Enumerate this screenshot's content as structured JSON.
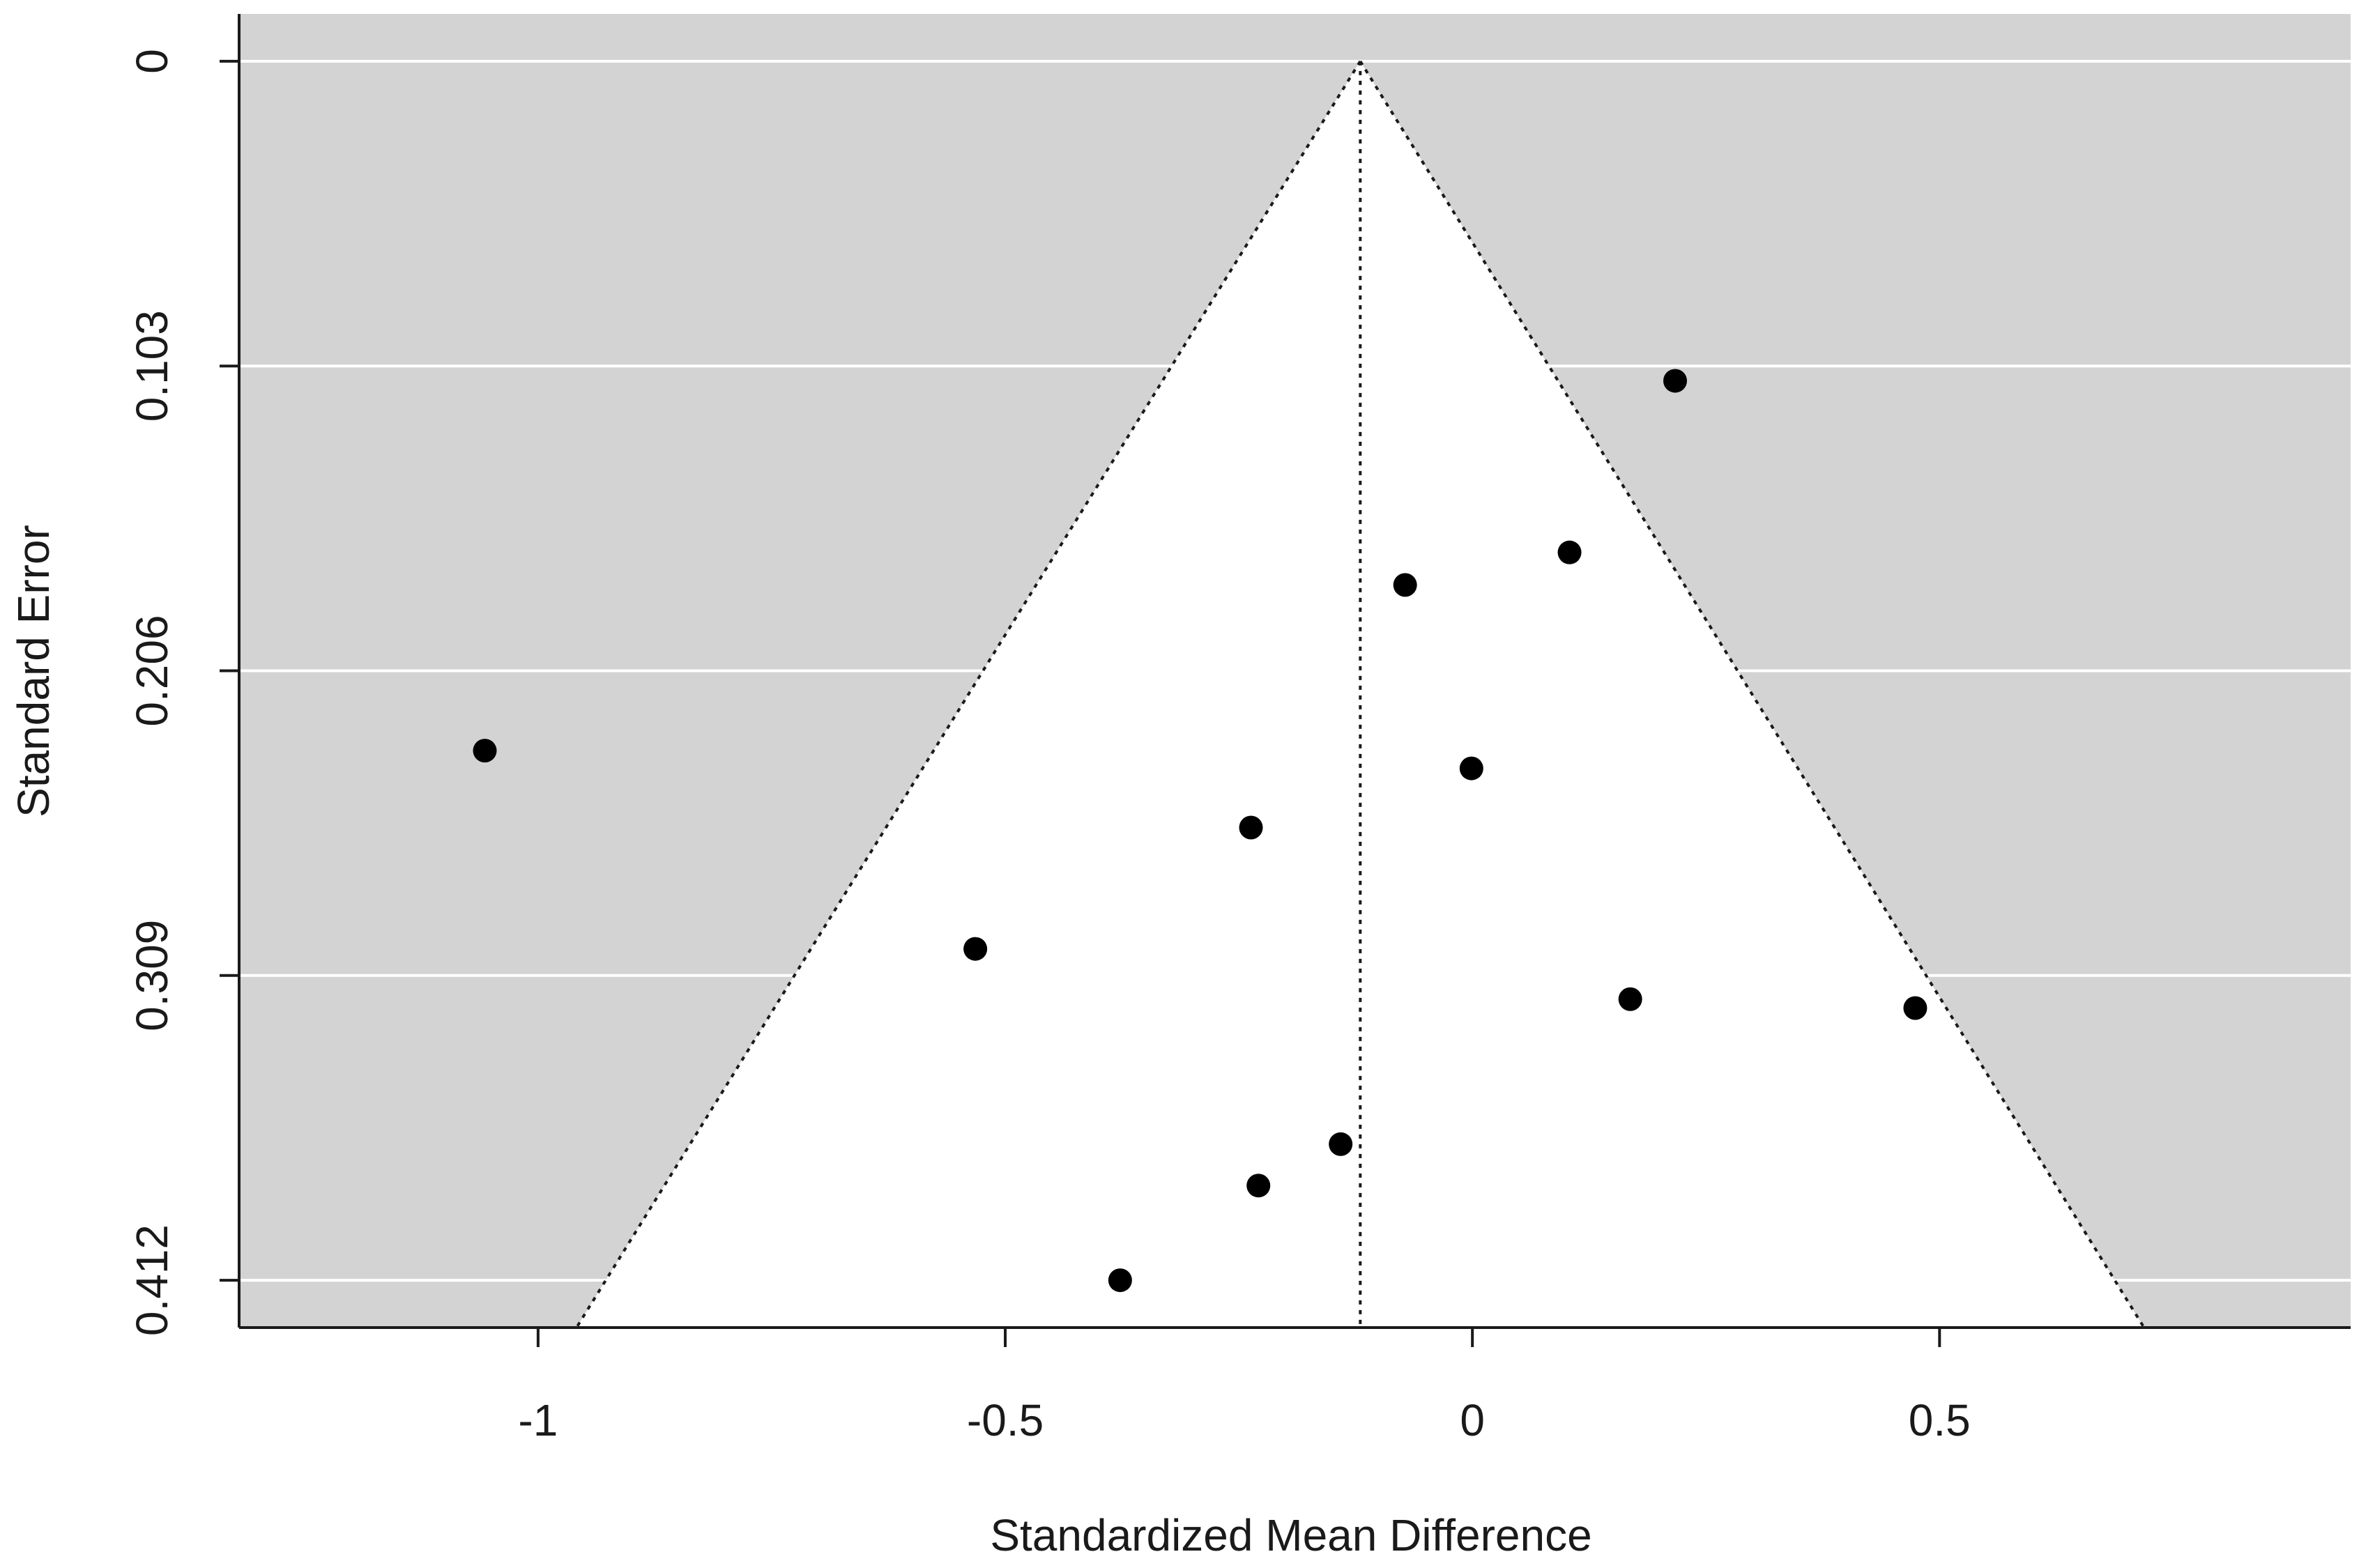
{
  "chart_data": {
    "type": "scatter",
    "subtype": "funnel plot",
    "xlabel": "Standardized Mean Difference",
    "ylabel": "Standard Error",
    "xlim": [
      -1.32,
      0.94
    ],
    "ylim": [
      0.428,
      -0.016
    ],
    "y_reversed": true,
    "x_ticks": [
      -1,
      -0.5,
      0,
      0.5
    ],
    "x_tick_labels": [
      "-1",
      "-0.5",
      "0",
      "0.5"
    ],
    "y_ticks": [
      0,
      0.103,
      0.206,
      0.309,
      0.412
    ],
    "y_tick_labels": [
      "0",
      "0.103",
      "0.206",
      "0.309",
      "0.412"
    ],
    "summary_estimate": -0.12,
    "funnel_z": 1.96,
    "horizontal_gridlines": true,
    "colors": {
      "background": "#d3d3d3",
      "funnel": "#ffffff",
      "points": "#000000",
      "gridlines": "#ffffff",
      "lines": "#1a1a1a"
    },
    "points": [
      {
        "x": 0.217,
        "y": 0.108
      },
      {
        "x": 0.104,
        "y": 0.166
      },
      {
        "x": -0.072,
        "y": 0.177
      },
      {
        "x": -1.057,
        "y": 0.233
      },
      {
        "x": -0.001,
        "y": 0.239
      },
      {
        "x": -0.237,
        "y": 0.259
      },
      {
        "x": -0.532,
        "y": 0.3
      },
      {
        "x": 0.169,
        "y": 0.317
      },
      {
        "x": 0.474,
        "y": 0.32
      },
      {
        "x": -0.141,
        "y": 0.366
      },
      {
        "x": -0.229,
        "y": 0.38
      },
      {
        "x": -0.377,
        "y": 0.412
      }
    ]
  }
}
